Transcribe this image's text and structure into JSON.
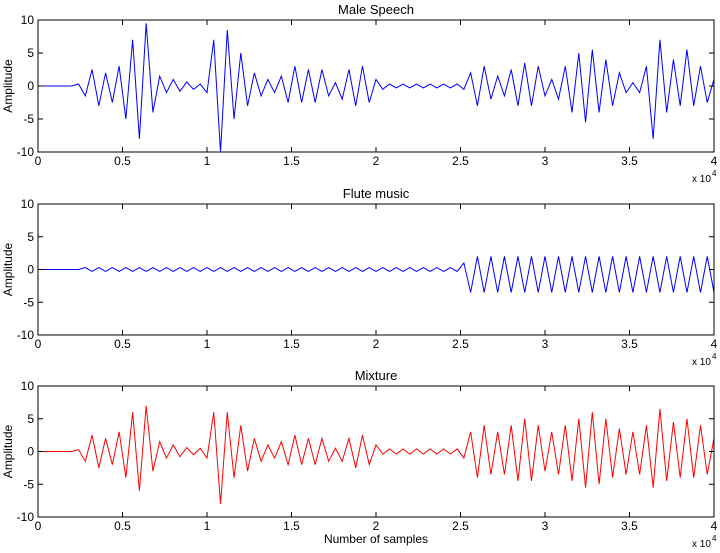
{
  "chart_data": [
    {
      "type": "line",
      "title": "Male Speech",
      "ylabel": "Amplitude",
      "x_multiplier": "x 10",
      "x_exponent": "4",
      "x": [
        0,
        0.04,
        0.08,
        0.12,
        0.16,
        0.2,
        0.24,
        0.28,
        0.32,
        0.36,
        0.4,
        0.44,
        0.48,
        0.52,
        0.56,
        0.6,
        0.64,
        0.68,
        0.72,
        0.76,
        0.8,
        0.84,
        0.88,
        0.92,
        0.96,
        1,
        1.04,
        1.08,
        1.12,
        1.16,
        1.2,
        1.24,
        1.28,
        1.32,
        1.36,
        1.4,
        1.44,
        1.48,
        1.52,
        1.56,
        1.6,
        1.64,
        1.68,
        1.72,
        1.76,
        1.8,
        1.84,
        1.88,
        1.92,
        1.96,
        2,
        2.04,
        2.08,
        2.12,
        2.16,
        2.2,
        2.24,
        2.28,
        2.32,
        2.36,
        2.4,
        2.44,
        2.48,
        2.52,
        2.56,
        2.6,
        2.64,
        2.68,
        2.72,
        2.76,
        2.8,
        2.84,
        2.88,
        2.92,
        2.96,
        3,
        3.04,
        3.08,
        3.12,
        3.16,
        3.2,
        3.24,
        3.28,
        3.32,
        3.36,
        3.4,
        3.44,
        3.48,
        3.52,
        3.56,
        3.6,
        3.64,
        3.68,
        3.72,
        3.76,
        3.8,
        3.84,
        3.88,
        3.92,
        3.96,
        4
      ],
      "series": [
        {
          "color": "#0000ff",
          "values": [
            0,
            0,
            0,
            0,
            0,
            0,
            0.3,
            -1.5,
            2.5,
            -3,
            2,
            -2.5,
            3,
            -5,
            7,
            -8,
            9.5,
            -4,
            1.5,
            -1,
            1,
            -0.8,
            0.6,
            -0.5,
            0.3,
            -1,
            7,
            -10,
            8.5,
            -5,
            5,
            -3,
            2,
            -1.5,
            1,
            -1,
            1.5,
            -2.5,
            3,
            -2.5,
            2.5,
            -2.5,
            2.5,
            -1.5,
            0.5,
            -2,
            2.5,
            -3,
            3,
            -2.5,
            1,
            -0.5,
            0.3,
            -0.3,
            0.3,
            -0.3,
            0.3,
            -0.3,
            0.3,
            -0.3,
            0.3,
            -0.3,
            0.3,
            -0.5,
            2,
            -3,
            3,
            -2,
            1.5,
            -1.5,
            2.5,
            -3,
            3.5,
            -3,
            3,
            -1.5,
            1,
            -2,
            3,
            -4,
            5,
            -5.5,
            5.5,
            -4,
            4,
            -3,
            2,
            -1,
            0.5,
            -1,
            3,
            -8,
            7,
            -4,
            4,
            -3,
            5.5,
            -3,
            3,
            -2.5,
            1
          ]
        }
      ],
      "xlim": [
        0,
        4
      ],
      "xticks": [
        0,
        0.5,
        1,
        1.5,
        2,
        2.5,
        3,
        3.5,
        4
      ],
      "ylim": [
        -10,
        10
      ],
      "yticks": [
        -10,
        -5,
        0,
        5,
        10
      ]
    },
    {
      "type": "line",
      "title": "Flute music",
      "ylabel": "Amplitude",
      "x_multiplier": "x 10",
      "x_exponent": "4",
      "x": [
        0,
        0.04,
        0.08,
        0.12,
        0.16,
        0.2,
        0.24,
        0.28,
        0.32,
        0.36,
        0.4,
        0.44,
        0.48,
        0.52,
        0.56,
        0.6,
        0.64,
        0.68,
        0.72,
        0.76,
        0.8,
        0.84,
        0.88,
        0.92,
        0.96,
        1,
        1.04,
        1.08,
        1.12,
        1.16,
        1.2,
        1.24,
        1.28,
        1.32,
        1.36,
        1.4,
        1.44,
        1.48,
        1.52,
        1.56,
        1.6,
        1.64,
        1.68,
        1.72,
        1.76,
        1.8,
        1.84,
        1.88,
        1.92,
        1.96,
        2,
        2.04,
        2.08,
        2.12,
        2.16,
        2.2,
        2.24,
        2.28,
        2.32,
        2.36,
        2.4,
        2.44,
        2.48,
        2.52,
        2.56,
        2.6,
        2.64,
        2.68,
        2.72,
        2.76,
        2.8,
        2.84,
        2.88,
        2.92,
        2.96,
        3,
        3.04,
        3.08,
        3.12,
        3.16,
        3.2,
        3.24,
        3.28,
        3.32,
        3.36,
        3.4,
        3.44,
        3.48,
        3.52,
        3.56,
        3.6,
        3.64,
        3.68,
        3.72,
        3.76,
        3.8,
        3.84,
        3.88,
        3.92,
        3.96,
        4
      ],
      "series": [
        {
          "color": "#0000ff",
          "values": [
            0,
            0,
            0,
            0,
            0,
            0,
            0,
            0.3,
            -0.3,
            0.3,
            -0.3,
            0.3,
            -0.3,
            0.3,
            -0.3,
            0.3,
            -0.3,
            0.3,
            -0.3,
            0.3,
            -0.3,
            0.3,
            -0.3,
            0.3,
            -0.3,
            0.3,
            -0.3,
            0.3,
            -0.3,
            0.3,
            -0.3,
            0.3,
            -0.3,
            0.3,
            -0.3,
            0.3,
            -0.3,
            0.3,
            -0.3,
            0.3,
            -0.3,
            0.3,
            -0.3,
            0.3,
            -0.3,
            0.3,
            -0.3,
            0.3,
            -0.3,
            0.3,
            -0.3,
            0.3,
            -0.3,
            0.3,
            -0.3,
            0.3,
            -0.3,
            0.3,
            -0.3,
            0.3,
            -0.3,
            0.3,
            -0.3,
            1,
            -3.5,
            2,
            -3.5,
            2,
            -3.5,
            2,
            -3.5,
            2,
            -3.5,
            2,
            -3.5,
            2,
            -3.5,
            2,
            -3.5,
            2,
            -3.5,
            2,
            -3.5,
            2,
            -3.5,
            2,
            -3.5,
            2,
            -3.5,
            2,
            -3.5,
            2,
            -3.5,
            2,
            -3.5,
            2,
            -3.5,
            2,
            -3.5,
            2,
            -3.5
          ]
        }
      ],
      "xlim": [
        0,
        4
      ],
      "xticks": [
        0,
        0.5,
        1,
        1.5,
        2,
        2.5,
        3,
        3.5,
        4
      ],
      "ylim": [
        -10,
        10
      ],
      "yticks": [
        -10,
        -5,
        0,
        5,
        10
      ]
    },
    {
      "type": "line",
      "title": "Mixture",
      "ylabel": "Amplitude",
      "xlabel": "Number of samples",
      "x_multiplier": "x 10",
      "x_exponent": "4",
      "x": [
        0,
        0.04,
        0.08,
        0.12,
        0.16,
        0.2,
        0.24,
        0.28,
        0.32,
        0.36,
        0.4,
        0.44,
        0.48,
        0.52,
        0.56,
        0.6,
        0.64,
        0.68,
        0.72,
        0.76,
        0.8,
        0.84,
        0.88,
        0.92,
        0.96,
        1,
        1.04,
        1.08,
        1.12,
        1.16,
        1.2,
        1.24,
        1.28,
        1.32,
        1.36,
        1.4,
        1.44,
        1.48,
        1.52,
        1.56,
        1.6,
        1.64,
        1.68,
        1.72,
        1.76,
        1.8,
        1.84,
        1.88,
        1.92,
        1.96,
        2,
        2.04,
        2.08,
        2.12,
        2.16,
        2.2,
        2.24,
        2.28,
        2.32,
        2.36,
        2.4,
        2.44,
        2.48,
        2.52,
        2.56,
        2.6,
        2.64,
        2.68,
        2.72,
        2.76,
        2.8,
        2.84,
        2.88,
        2.92,
        2.96,
        3,
        3.04,
        3.08,
        3.12,
        3.16,
        3.2,
        3.24,
        3.28,
        3.32,
        3.36,
        3.4,
        3.44,
        3.48,
        3.52,
        3.56,
        3.6,
        3.64,
        3.68,
        3.72,
        3.76,
        3.8,
        3.84,
        3.88,
        3.92,
        3.96,
        4
      ],
      "series": [
        {
          "color": "#ff0000",
          "values": [
            0,
            0,
            0,
            0,
            0,
            0,
            0.3,
            -1.5,
            2.5,
            -2.5,
            2,
            -2,
            3,
            -4,
            6,
            -6,
            7,
            -3,
            1.5,
            -1,
            1,
            -0.8,
            0.6,
            -0.5,
            0.5,
            -1,
            6,
            -8,
            6,
            -4,
            4,
            -3,
            2,
            -1.5,
            1,
            -1,
            1.5,
            -2,
            2.5,
            -2,
            2,
            -2,
            2,
            -1.5,
            0.5,
            -1.5,
            2,
            -2.5,
            2.5,
            -2,
            1,
            -0.4,
            0.4,
            -0.4,
            0.4,
            -0.4,
            0.4,
            -0.4,
            0.4,
            -0.4,
            0.4,
            -0.4,
            0.4,
            -1,
            3,
            -4,
            4,
            -3.5,
            3,
            -3.5,
            4,
            -4.5,
            5,
            -4.5,
            4,
            -3,
            3,
            -3.5,
            4,
            -4.5,
            5,
            -5.5,
            6,
            -5,
            5,
            -4,
            3.5,
            -3.5,
            3,
            -3.5,
            4,
            -5.5,
            6.5,
            -4.5,
            4.5,
            -4,
            5,
            -4,
            4,
            -3.5,
            2
          ]
        }
      ],
      "xlim": [
        0,
        4
      ],
      "xticks": [
        0,
        0.5,
        1,
        1.5,
        2,
        2.5,
        3,
        3.5,
        4
      ],
      "ylim": [
        -10,
        10
      ],
      "yticks": [
        -10,
        -5,
        0,
        5,
        10
      ]
    }
  ]
}
